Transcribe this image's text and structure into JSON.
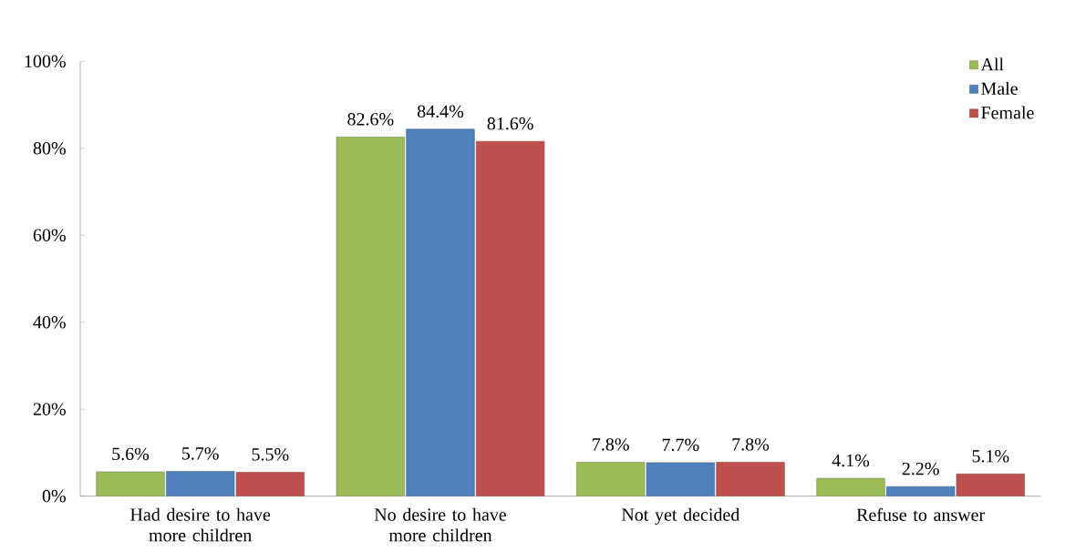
{
  "chart_data": {
    "type": "bar",
    "categories": [
      "Had desire to have more children",
      "No desire to have more children",
      "Not yet decided",
      "Refuse to answer"
    ],
    "series": [
      {
        "name": "All",
        "color": "#9bbb59",
        "values": [
          5.6,
          82.6,
          7.8,
          4.1
        ],
        "value_labels": [
          "5.6%",
          "82.6%",
          "7.8%",
          "4.1%"
        ]
      },
      {
        "name": "Male",
        "color": "#4f81bd",
        "values": [
          5.7,
          84.4,
          7.7,
          2.2
        ],
        "value_labels": [
          "5.7%",
          "84.4%",
          "7.7%",
          "2.2%"
        ]
      },
      {
        "name": "Female",
        "color": "#c0504d",
        "values": [
          5.5,
          81.6,
          7.8,
          5.1
        ],
        "value_labels": [
          "5.5%",
          "81.6%",
          "7.8%",
          "5.1%"
        ]
      }
    ],
    "ylim": [
      0,
      100
    ],
    "yticks": [
      {
        "value": 0,
        "label": "0%"
      },
      {
        "value": 20,
        "label": "20%"
      },
      {
        "value": 40,
        "label": "40%"
      },
      {
        "value": 60,
        "label": "60%"
      },
      {
        "value": 80,
        "label": "80%"
      },
      {
        "value": 100,
        "label": "100%"
      }
    ],
    "grid": false,
    "legend": "top right"
  }
}
